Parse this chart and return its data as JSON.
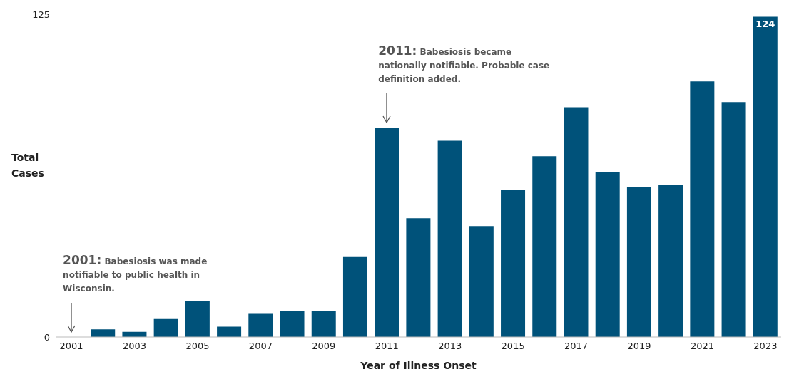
{
  "chart_data": {
    "type": "bar",
    "xlabel": "Year of Illness Onset",
    "ylabel": "Total Cases",
    "categories": [
      "2001",
      null,
      "2003",
      null,
      "2005",
      null,
      "2007",
      null,
      "2009",
      null,
      "2011",
      null,
      "2013",
      null,
      "2015",
      null,
      "2017",
      null,
      "2019",
      null,
      "2021",
      null,
      "2023"
    ],
    "values": [
      0,
      3,
      2,
      7,
      14,
      4,
      9,
      10,
      10,
      31,
      81,
      46,
      76,
      43,
      57,
      70,
      89,
      64,
      58,
      59,
      99,
      91,
      124
    ],
    "value_labels": [
      null,
      null,
      null,
      null,
      null,
      null,
      null,
      null,
      null,
      null,
      null,
      null,
      null,
      null,
      null,
      null,
      null,
      null,
      null,
      null,
      null,
      null,
      "124"
    ],
    "color": "#00527a",
    "ylim": [
      0,
      125
    ],
    "yticks": [
      0,
      125
    ],
    "annotations": [
      {
        "text": "2001: Babesiosis was made notifiable to public health in Wisconsin.",
        "x": "2001",
        "y": 0
      },
      {
        "text": "2011: Babesiosis became nationally notifiable. Probable case definition added.",
        "x": "2011",
        "y": 81
      }
    ]
  }
}
